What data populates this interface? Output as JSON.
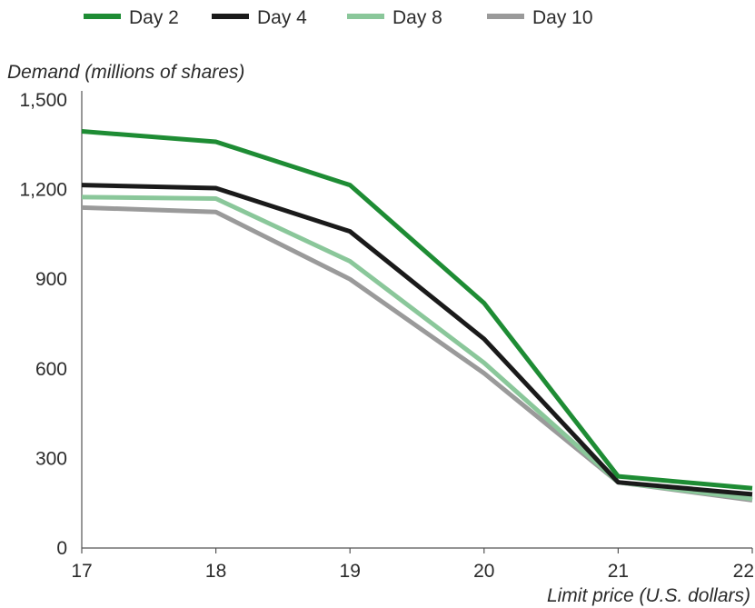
{
  "chart_data": {
    "type": "line",
    "xlabel": "Limit price (U.S. dollars)",
    "ylabel": "Demand (millions of shares)",
    "x": [
      17,
      18,
      19,
      20,
      21,
      22
    ],
    "xticks": [
      "17",
      "18",
      "19",
      "20",
      "21",
      "22"
    ],
    "ylim": [
      0,
      1500
    ],
    "yticks": [
      {
        "value": 0,
        "label": "0"
      },
      {
        "value": 300,
        "label": "300"
      },
      {
        "value": 600,
        "label": "600"
      },
      {
        "value": 900,
        "label": "900"
      },
      {
        "value": 1200,
        "label": "1,200"
      },
      {
        "value": 1500,
        "label": "1,500"
      }
    ],
    "grid": false,
    "legend_position": "top",
    "series": [
      {
        "name": "Day 2",
        "color": "#1e8c34",
        "values": [
          1395,
          1360,
          1215,
          820,
          240,
          200
        ]
      },
      {
        "name": "Day 4",
        "color": "#1a1a1a",
        "values": [
          1215,
          1205,
          1060,
          700,
          220,
          180
        ]
      },
      {
        "name": "Day 8",
        "color": "#8ac79a",
        "values": [
          1175,
          1170,
          960,
          620,
          220,
          165
        ]
      },
      {
        "name": "Day 10",
        "color": "#9a9a9a",
        "values": [
          1140,
          1125,
          900,
          585,
          220,
          160
        ]
      }
    ]
  }
}
